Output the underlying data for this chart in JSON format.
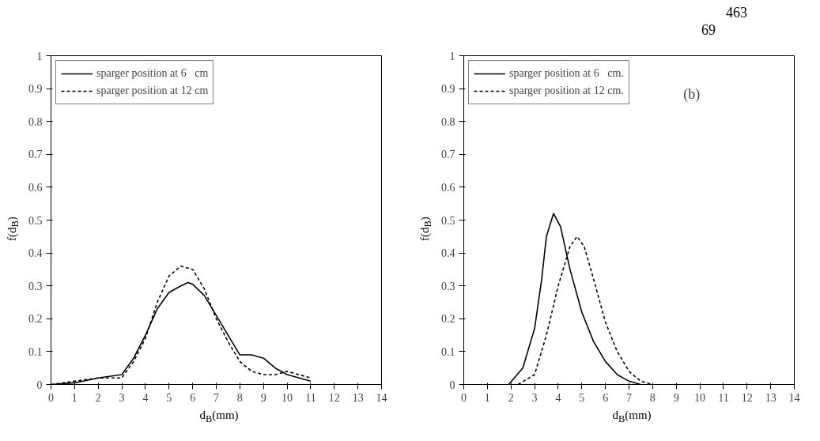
{
  "chart_data": [
    {
      "type": "line",
      "xlabel": "d$_{B}$(mm)",
      "ylabel": "f(d$_{B}$)",
      "xlim": [
        0,
        14
      ],
      "xticks": [
        0,
        1,
        2,
        3,
        4,
        5,
        6,
        7,
        8,
        9,
        10,
        11,
        12,
        13,
        14
      ],
      "ylim": [
        0,
        1
      ],
      "yticks": [
        0,
        0.1,
        0.2,
        0.3,
        0.4,
        0.5,
        0.6,
        0.7,
        0.8,
        0.9,
        1
      ],
      "legend": "top left",
      "grid": false,
      "marker": "none",
      "series": [
        {
          "name": "sparger position at 6   cm",
          "color": "#000000",
          "line_style": "solid",
          "x": [
            0,
            1,
            2,
            3,
            3.5,
            4,
            4.5,
            5,
            5.5,
            5.8,
            6,
            6.5,
            7,
            7.5,
            8,
            8.5,
            9,
            9.5,
            10,
            11
          ],
          "values": [
            0,
            0.005,
            0.02,
            0.03,
            0.08,
            0.15,
            0.23,
            0.28,
            0.3,
            0.31,
            0.305,
            0.27,
            0.21,
            0.15,
            0.09,
            0.09,
            0.08,
            0.05,
            0.03,
            0.01
          ]
        },
        {
          "name": "sparger position at 12 cm",
          "color": "#000000",
          "line_style": "dashed",
          "x": [
            0,
            2,
            3,
            3.5,
            4,
            4.5,
            5,
            5.5,
            6,
            6.5,
            7,
            7.5,
            8,
            8.5,
            9,
            9.5,
            10,
            10.5,
            11
          ],
          "values": [
            0,
            0.02,
            0.02,
            0.07,
            0.14,
            0.25,
            0.33,
            0.36,
            0.35,
            0.29,
            0.2,
            0.13,
            0.07,
            0.04,
            0.03,
            0.03,
            0.04,
            0.03,
            0.02
          ]
        }
      ]
    },
    {
      "type": "line",
      "xlabel": "d$_{B}$(mm)",
      "ylabel": "f(d$_{B}$)",
      "xlim": [
        0,
        14
      ],
      "xticks": [
        0,
        1,
        2,
        3,
        4,
        5,
        6,
        7,
        8,
        9,
        10,
        11,
        12,
        13,
        14
      ],
      "ylim": [
        0,
        1
      ],
      "yticks": [
        0,
        0.1,
        0.2,
        0.3,
        0.4,
        0.5,
        0.6,
        0.7,
        0.8,
        0.9,
        1
      ],
      "legend": "top left",
      "grid": false,
      "marker": "none",
      "annotations": [
        "(b)",
        "463",
        "69"
      ],
      "series": [
        {
          "name": "sparger position at 6   cm.",
          "color": "#000000",
          "line_style": "solid",
          "x": [
            1.9,
            2.5,
            3,
            3.3,
            3.5,
            3.8,
            4.1,
            4.5,
            5,
            5.5,
            6,
            6.5,
            7,
            7.5
          ],
          "values": [
            0,
            0.05,
            0.17,
            0.32,
            0.45,
            0.52,
            0.48,
            0.35,
            0.22,
            0.13,
            0.07,
            0.03,
            0.01,
            0
          ]
        },
        {
          "name": "sparger position at 12 cm.",
          "color": "#000000",
          "line_style": "dashed",
          "x": [
            2.3,
            3,
            3.5,
            4,
            4.5,
            4.8,
            5.1,
            5.5,
            6,
            6.5,
            7,
            7.5,
            8
          ],
          "values": [
            0,
            0.03,
            0.15,
            0.3,
            0.42,
            0.45,
            0.42,
            0.32,
            0.19,
            0.1,
            0.04,
            0.01,
            0
          ]
        }
      ]
    }
  ]
}
